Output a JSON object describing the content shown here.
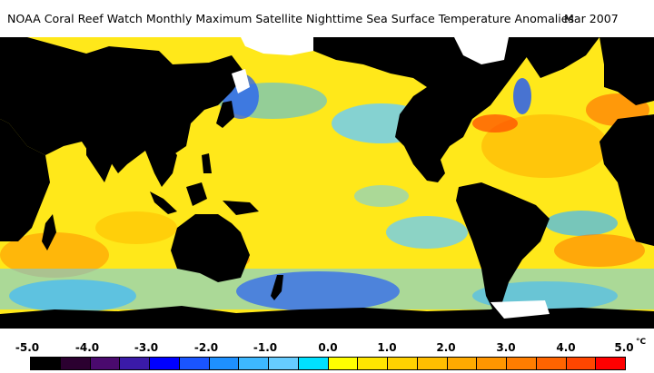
{
  "header": {
    "title": "NOAA Coral Reef Watch Monthly Maximum Satellite Nighttime Sea Surface Temperature Anomalies",
    "date": "Mar 2007"
  },
  "legend": {
    "ticks": [
      "-5.0",
      "-4.0",
      "-3.0",
      "-2.0",
      "-1.0",
      "0.0",
      "1.0",
      "2.0",
      "3.0",
      "4.0",
      "5.0"
    ],
    "unit": "°C",
    "colors": [
      "#000000",
      "#2b0030",
      "#4a0a6e",
      "#3a1aa8",
      "#0000ff",
      "#1a55ff",
      "#1e90ff",
      "#3db8ff",
      "#66ccff",
      "#00e0ff",
      "#ffff00",
      "#ffe600",
      "#ffd200",
      "#ffbe00",
      "#ffaa00",
      "#ff9600",
      "#ff7d00",
      "#ff6400",
      "#ff4600",
      "#ff0000"
    ]
  },
  "map": {
    "land_color": "#000000",
    "ice_color": "#ffffff",
    "ocean_base_color": "#ffe81a"
  }
}
